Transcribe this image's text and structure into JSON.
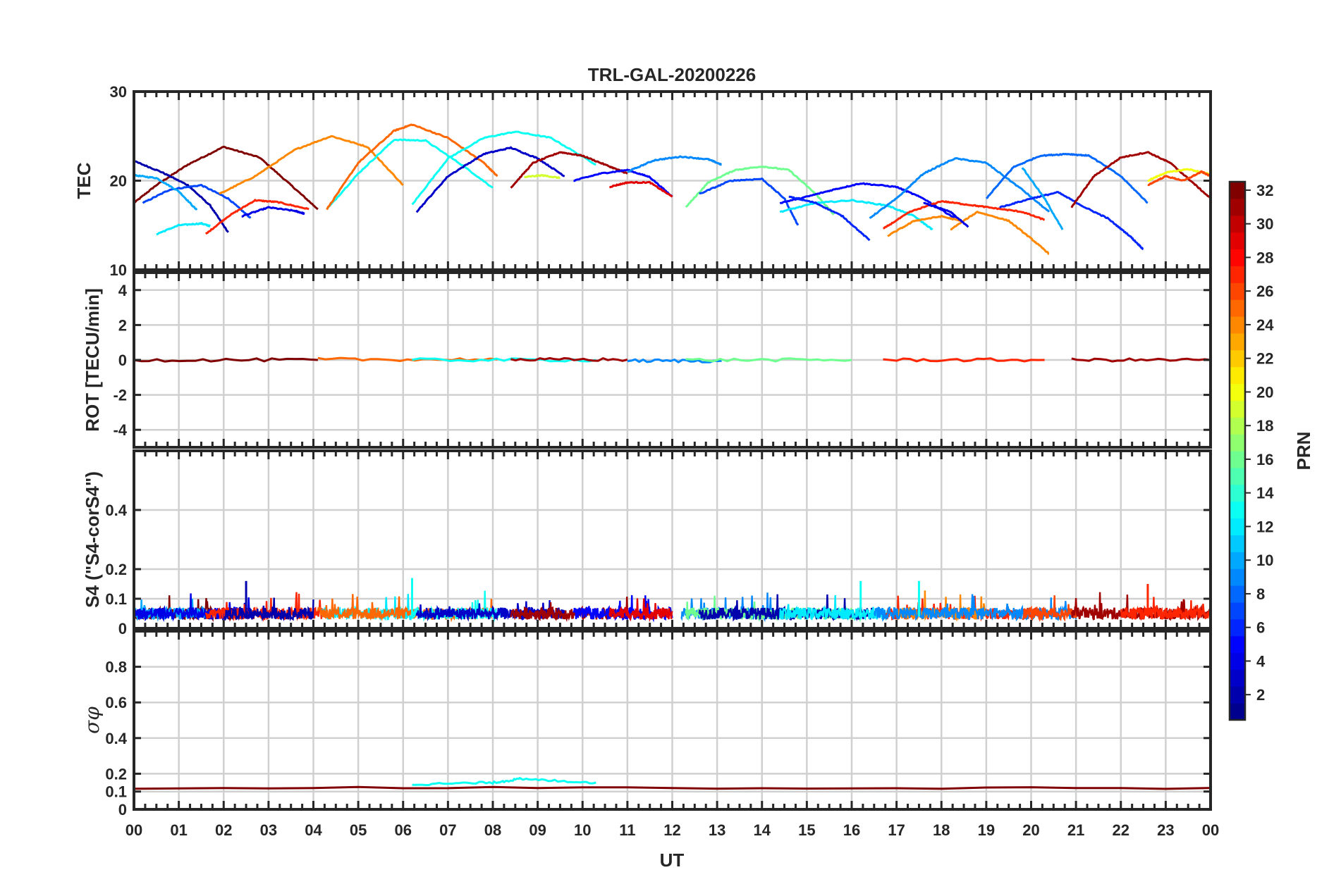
{
  "figure": {
    "title": "TRL-GAL-20200226",
    "x_axis_label": "UT",
    "x_tick_labels": [
      "00",
      "01",
      "02",
      "03",
      "04",
      "05",
      "06",
      "07",
      "08",
      "09",
      "10",
      "11",
      "12",
      "13",
      "14",
      "15",
      "16",
      "17",
      "18",
      "19",
      "20",
      "21",
      "22",
      "23",
      "00"
    ]
  },
  "colorbar": {
    "label": "PRN",
    "range": [
      1,
      32
    ],
    "tick_labels": [
      "2",
      "4",
      "6",
      "8",
      "10",
      "12",
      "14",
      "16",
      "18",
      "20",
      "22",
      "24",
      "26",
      "28",
      "30",
      "32"
    ],
    "colors": [
      "#00008f",
      "#0000ff",
      "#0080ff",
      "#00ffff",
      "#80ff80",
      "#ffff00",
      "#ff8000",
      "#ff0000",
      "#800000"
    ]
  },
  "chart_data": [
    {
      "type": "line",
      "panel": "TEC",
      "title": "TRL-GAL-20200226",
      "ylabel": "TEC",
      "xlabel": "UT",
      "xlim": [
        0,
        24
      ],
      "ylim": [
        10,
        30
      ],
      "ytick_labels": [
        "10",
        "20",
        "30"
      ],
      "series": [
        {
          "prn": 32,
          "x": [
            0.0,
            0.5,
            1.2,
            2.0,
            2.8,
            3.5,
            4.1
          ],
          "y": [
            17.5,
            19.5,
            21.8,
            23.8,
            22.6,
            19.5,
            16.8
          ]
        },
        {
          "prn": 2,
          "x": [
            0.0,
            0.6,
            1.2,
            1.7,
            2.1
          ],
          "y": [
            22.2,
            21.0,
            19.5,
            17.2,
            14.2
          ]
        },
        {
          "prn": 7,
          "x": [
            0.2,
            0.8,
            1.5,
            2.1,
            2.6
          ],
          "y": [
            17.5,
            19.0,
            19.5,
            18.0,
            15.8
          ]
        },
        {
          "prn": 10,
          "x": [
            0.0,
            0.5,
            1.0,
            1.4
          ],
          "y": [
            20.6,
            20.3,
            18.8,
            16.7
          ]
        },
        {
          "prn": 12,
          "x": [
            0.5,
            1.0,
            1.5,
            1.7
          ],
          "y": [
            14.0,
            15.0,
            15.2,
            14.9
          ]
        },
        {
          "prn": 27,
          "x": [
            1.6,
            2.1,
            2.7,
            3.2,
            3.9
          ],
          "y": [
            14.0,
            16.0,
            17.8,
            17.6,
            16.8
          ]
        },
        {
          "prn": 4,
          "x": [
            2.4,
            3.0,
            3.6,
            3.8
          ],
          "y": [
            16.0,
            17.0,
            16.6,
            16.3
          ]
        },
        {
          "prn": 24,
          "x": [
            1.9,
            2.7,
            3.6,
            4.4,
            5.2,
            6.0
          ],
          "y": [
            18.5,
            20.5,
            23.5,
            25.0,
            23.8,
            19.5
          ]
        },
        {
          "prn": 13,
          "x": [
            4.3,
            5.0,
            5.8,
            6.5,
            7.3,
            8.0
          ],
          "y": [
            16.8,
            20.8,
            24.6,
            24.5,
            21.8,
            19.2
          ]
        },
        {
          "prn": 25,
          "x": [
            4.3,
            5.0,
            5.8,
            6.2,
            7.0,
            7.8,
            8.1
          ],
          "y": [
            16.8,
            22.0,
            25.6,
            26.3,
            24.8,
            22.0,
            20.5
          ]
        },
        {
          "prn": 13,
          "x": [
            6.2,
            7.0,
            7.8,
            8.5,
            9.3,
            10.3
          ],
          "y": [
            17.3,
            22.5,
            24.8,
            25.5,
            24.8,
            21.8
          ]
        },
        {
          "prn": 3,
          "x": [
            6.3,
            7.0,
            7.8,
            8.4,
            9.0,
            9.6
          ],
          "y": [
            16.5,
            20.5,
            23.0,
            23.7,
            22.5,
            20.5
          ]
        },
        {
          "prn": 31,
          "x": [
            8.4,
            8.9,
            9.5,
            10.0,
            10.6,
            11.0
          ],
          "y": [
            19.2,
            22.0,
            23.2,
            22.8,
            21.6,
            20.8
          ]
        },
        {
          "prn": 19,
          "x": [
            8.7,
            9.1,
            9.5
          ],
          "y": [
            20.4,
            20.6,
            20.3
          ]
        },
        {
          "prn": 5,
          "x": [
            9.8,
            10.4,
            11.0,
            11.5,
            12.0
          ],
          "y": [
            20.0,
            20.8,
            21.2,
            20.4,
            18.2
          ]
        },
        {
          "prn": 29,
          "x": [
            10.6,
            11.0,
            11.5,
            12.0
          ],
          "y": [
            19.3,
            19.8,
            19.8,
            18.2
          ]
        },
        {
          "prn": 9,
          "x": [
            11.0,
            11.6,
            12.2,
            12.8,
            13.1
          ],
          "y": [
            21.0,
            22.3,
            22.7,
            22.4,
            21.8
          ]
        },
        {
          "prn": 16,
          "x": [
            12.3,
            12.8,
            13.4,
            14.0,
            14.6,
            15.2,
            15.6
          ],
          "y": [
            17.0,
            19.8,
            21.2,
            21.6,
            21.2,
            18.5,
            16.2
          ]
        },
        {
          "prn": 7,
          "x": [
            12.6,
            13.3,
            14.0,
            14.5,
            14.8
          ],
          "y": [
            18.5,
            20.0,
            20.2,
            18.0,
            15.0
          ]
        },
        {
          "prn": 5,
          "x": [
            14.4,
            15.0,
            15.6,
            16.2,
            17.0,
            17.6,
            18.3
          ],
          "y": [
            17.5,
            18.2,
            19.0,
            19.7,
            19.3,
            18.0,
            15.8
          ]
        },
        {
          "prn": 12,
          "x": [
            14.4,
            15.2,
            16.0,
            16.8,
            17.4,
            17.8
          ],
          "y": [
            16.5,
            17.5,
            17.8,
            17.2,
            16.0,
            14.5
          ]
        },
        {
          "prn": 6,
          "x": [
            14.6,
            15.2,
            15.8,
            16.4
          ],
          "y": [
            18.2,
            17.5,
            16.0,
            13.3
          ]
        },
        {
          "prn": 9,
          "x": [
            16.4,
            17.0,
            17.6,
            18.3,
            19.0,
            19.8,
            20.4
          ],
          "y": [
            15.8,
            18.0,
            20.8,
            22.5,
            22.0,
            19.0,
            16.5
          ]
        },
        {
          "prn": 27,
          "x": [
            16.7,
            17.3,
            18.0,
            18.6,
            19.2,
            19.8,
            20.3
          ],
          "y": [
            14.6,
            16.5,
            17.7,
            17.3,
            16.9,
            16.5,
            15.6
          ]
        },
        {
          "prn": 24,
          "x": [
            16.8,
            17.4,
            18.0,
            18.5
          ],
          "y": [
            13.8,
            15.5,
            16.0,
            15.4
          ]
        },
        {
          "prn": 24,
          "x": [
            18.2,
            18.8,
            19.5,
            20.0,
            20.4
          ],
          "y": [
            14.5,
            16.5,
            15.5,
            13.5,
            11.8
          ]
        },
        {
          "prn": 4,
          "x": [
            17.6,
            18.2,
            18.6
          ],
          "y": [
            17.5,
            16.5,
            14.8
          ]
        },
        {
          "prn": 8,
          "x": [
            19.0,
            19.6,
            20.2,
            20.8,
            21.3,
            22.0,
            22.6
          ],
          "y": [
            18.0,
            21.5,
            22.8,
            23.0,
            22.8,
            20.5,
            17.5
          ]
        },
        {
          "prn": 6,
          "x": [
            19.3,
            20.0,
            20.6,
            21.2,
            21.7,
            22.2,
            22.5
          ],
          "y": [
            17.0,
            18.0,
            18.7,
            17.0,
            15.8,
            13.8,
            12.3
          ]
        },
        {
          "prn": 10,
          "x": [
            19.8,
            20.3,
            20.7
          ],
          "y": [
            21.5,
            18.0,
            14.5
          ]
        },
        {
          "prn": 31,
          "x": [
            20.9,
            21.4,
            22.0,
            22.6,
            23.1,
            23.6,
            24.0
          ],
          "y": [
            17.0,
            20.5,
            22.6,
            23.2,
            22.0,
            19.8,
            18.0
          ]
        },
        {
          "prn": 20,
          "x": [
            22.6,
            23.0,
            23.5,
            24.0
          ],
          "y": [
            20.0,
            20.9,
            21.3,
            20.7
          ]
        },
        {
          "prn": 26,
          "x": [
            22.6,
            23.0,
            23.4,
            23.8,
            24.0
          ],
          "y": [
            19.5,
            20.5,
            20.0,
            21.0,
            20.5
          ]
        }
      ]
    },
    {
      "type": "line",
      "panel": "ROT",
      "ylabel": "ROT [TECU/min]",
      "xlim": [
        0,
        24
      ],
      "ylim": [
        -5,
        5
      ],
      "ytick_labels": [
        "-4",
        "-2",
        "0",
        "2",
        "4"
      ],
      "series": [
        {
          "prn": 32,
          "x": [
            0,
            4.1
          ],
          "y": [
            0,
            0
          ]
        },
        {
          "prn": 25,
          "x": [
            4.1,
            8.1
          ],
          "y": [
            0.03,
            0.03
          ]
        },
        {
          "prn": 13,
          "x": [
            6.2,
            10.3
          ],
          "y": [
            0,
            0
          ]
        },
        {
          "prn": 31,
          "x": [
            8.4,
            11.0
          ],
          "y": [
            0.02,
            0.02
          ]
        },
        {
          "prn": 9,
          "x": [
            11.0,
            13.1
          ],
          "y": [
            -0.05,
            -0.05
          ]
        },
        {
          "prn": 16,
          "x": [
            12.3,
            16.0
          ],
          "y": [
            0,
            0
          ]
        },
        {
          "prn": 27,
          "x": [
            16.7,
            20.3
          ],
          "y": [
            0,
            0
          ]
        },
        {
          "prn": 31,
          "x": [
            20.9,
            24.0
          ],
          "y": [
            0,
            0
          ]
        }
      ]
    },
    {
      "type": "line",
      "panel": "S4",
      "ylabel": "S4 (\"S4-corS4\")",
      "xlim": [
        0,
        24
      ],
      "ylim": [
        0,
        0.6
      ],
      "ytick_labels": [
        "0",
        "0.1",
        "0.2",
        "0.4"
      ],
      "typical_range": [
        0.02,
        0.1
      ],
      "peak_values": [
        {
          "x": 2.5,
          "y": 0.16,
          "prn": 2
        },
        {
          "x": 6.2,
          "y": 0.17,
          "prn": 13
        },
        {
          "x": 16.2,
          "y": 0.16,
          "prn": 13
        },
        {
          "x": 17.5,
          "y": 0.16,
          "prn": 13
        },
        {
          "x": 22.6,
          "y": 0.15,
          "prn": 27
        }
      ]
    },
    {
      "type": "line",
      "panel": "sigma_phi",
      "ylabel": "σφ",
      "xlim": [
        0,
        24
      ],
      "ylim": [
        0,
        1
      ],
      "ytick_labels": [
        "0",
        "0.1",
        "0.2",
        "0.4",
        "0.6",
        "0.8"
      ],
      "series": [
        {
          "prn": 32,
          "x": [
            0,
            24
          ],
          "y": [
            0.12,
            0.12
          ]
        },
        {
          "prn": 13,
          "x": [
            6.2,
            8.0,
            8.6,
            10.3
          ],
          "y": [
            0.14,
            0.15,
            0.17,
            0.15
          ]
        }
      ]
    }
  ]
}
